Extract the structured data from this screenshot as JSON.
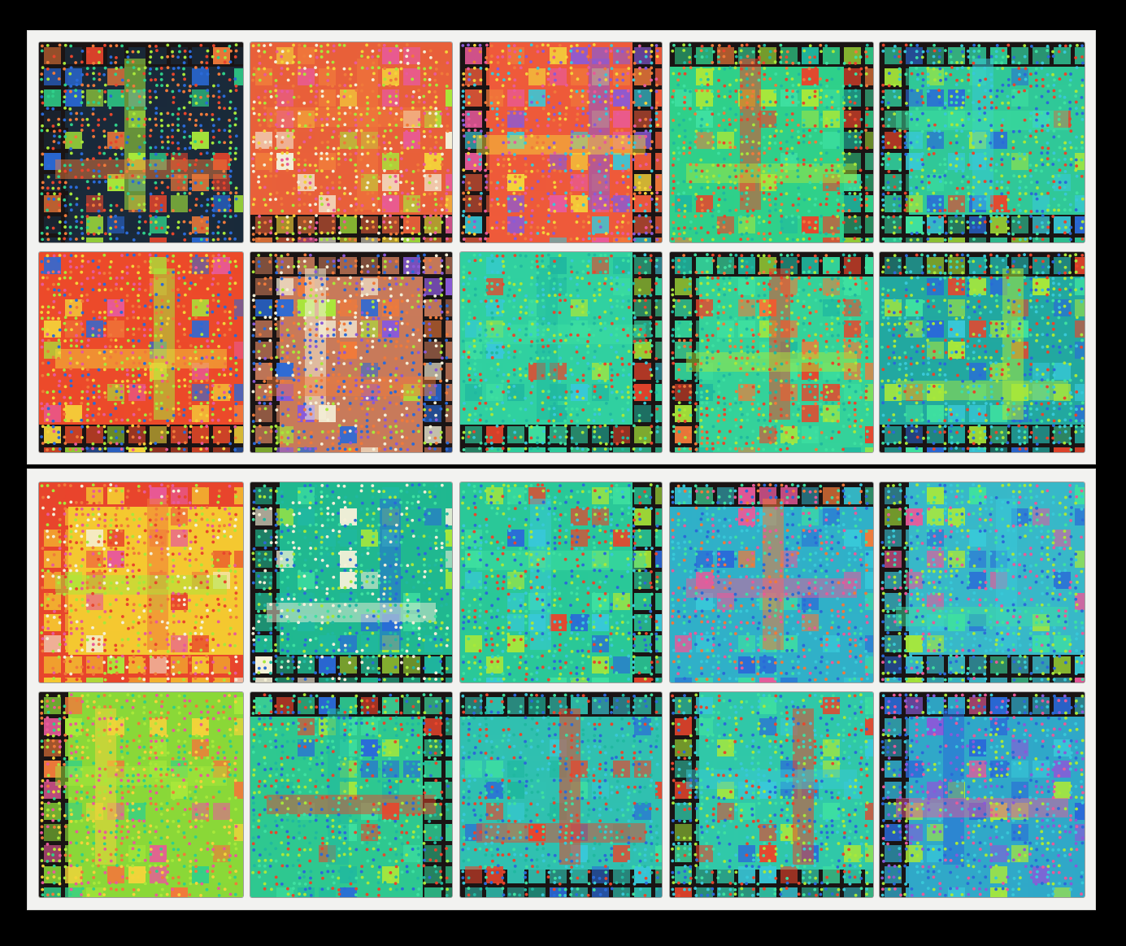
{
  "artwork": {
    "description_visible_text": "",
    "palette": {
      "red": "#e8452c",
      "orange": "#f07a3a",
      "coral": "#ee6a52",
      "green": "#2fd08a",
      "mint": "#3ee0a0",
      "teal": "#20b8a0",
      "lime": "#a8e83a",
      "yellow": "#f4d33a",
      "blue": "#2a6ad8",
      "cyan": "#38c8d8",
      "dark": "#1a1414",
      "pink": "#e85a9a",
      "violet": "#8a5ad8",
      "white": "#f4f0d8"
    },
    "panels": [
      {
        "name": "top-panel",
        "tiles": [
          {
            "base": "#1a2a3a",
            "accent": [
              "#e8452c",
              "#2fd08a",
              "#2a6ad8",
              "#f07a3a",
              "#a8e83a"
            ],
            "border": "#1a1414"
          },
          {
            "base": "#e8603a",
            "accent": [
              "#f07a3a",
              "#e85a9a",
              "#f4d33a",
              "#a8e83a",
              "#f4f0d8"
            ],
            "border": "#1a1414"
          },
          {
            "base": "#ee5a3a",
            "accent": [
              "#f07a3a",
              "#8a5ad8",
              "#f4d33a",
              "#e85a9a",
              "#38c8d8"
            ],
            "border": "#1a1414"
          },
          {
            "base": "#2fd08a",
            "accent": [
              "#3ee0a0",
              "#20b8a0",
              "#e8452c",
              "#a8e83a",
              "#f07a3a"
            ],
            "border": "#1a1414"
          },
          {
            "base": "#30c898",
            "accent": [
              "#3ee0a0",
              "#a8e83a",
              "#2a6ad8",
              "#38c8d8",
              "#e8452c"
            ],
            "border": "#1a1414"
          },
          {
            "base": "#ec4a2a",
            "accent": [
              "#f07a3a",
              "#f4d33a",
              "#e85a9a",
              "#2a6ad8",
              "#a8e83a"
            ],
            "border": "#1a1414"
          },
          {
            "base": "#c87a5a",
            "accent": [
              "#f4f0d8",
              "#a8e83a",
              "#8a5ad8",
              "#f07a3a",
              "#2a6ad8"
            ],
            "border": "#1a1414"
          },
          {
            "base": "#30d0a0",
            "accent": [
              "#3ee0a0",
              "#20b8a0",
              "#e8452c",
              "#38c8d8",
              "#a8e83a"
            ],
            "border": "#1a1414"
          },
          {
            "base": "#34d29a",
            "accent": [
              "#3ee0a0",
              "#a8e83a",
              "#e8452c",
              "#20b8a0",
              "#f07a3a"
            ],
            "border": "#1a1414"
          },
          {
            "base": "#22a8a0",
            "accent": [
              "#38c8d8",
              "#3ee0a0",
              "#e8452c",
              "#a8e83a",
              "#2a6ad8"
            ],
            "border": "#1a1414"
          }
        ]
      },
      {
        "name": "bottom-panel",
        "tiles": [
          {
            "base": "#f4c830",
            "accent": [
              "#e8452c",
              "#f07a3a",
              "#a8e83a",
              "#f4f0d8",
              "#e85a9a"
            ],
            "border": "#e8452c"
          },
          {
            "base": "#20b890",
            "accent": [
              "#3ee0a0",
              "#a8e83a",
              "#2a6ad8",
              "#f4f0d8",
              "#20b8a0"
            ],
            "border": "#1a1414"
          },
          {
            "base": "#2ac898",
            "accent": [
              "#3ee0a0",
              "#e8452c",
              "#2a6ad8",
              "#38c8d8",
              "#a8e83a"
            ],
            "border": "#1a1414"
          },
          {
            "base": "#30b0c8",
            "accent": [
              "#38c8d8",
              "#3ee0a0",
              "#e85a9a",
              "#2a6ad8",
              "#f07a3a"
            ],
            "border": "#1a1414"
          },
          {
            "base": "#38b8c8",
            "accent": [
              "#38c8d8",
              "#2a6ad8",
              "#e85a9a",
              "#3ee0a0",
              "#a8e83a"
            ],
            "border": "#1a1414"
          },
          {
            "base": "#8ad838",
            "accent": [
              "#a8e83a",
              "#f4d33a",
              "#2fd08a",
              "#e85a9a",
              "#f07a3a"
            ],
            "border": "#1a1414"
          },
          {
            "base": "#2ec890",
            "accent": [
              "#3ee0a0",
              "#e8452c",
              "#20b8a0",
              "#a8e83a",
              "#2a6ad8"
            ],
            "border": "#1a1414"
          },
          {
            "base": "#30c0b0",
            "accent": [
              "#38c8d8",
              "#3ee0a0",
              "#2a6ad8",
              "#e8452c",
              "#20b8a0"
            ],
            "border": "#1a1414"
          },
          {
            "base": "#30c8a8",
            "accent": [
              "#38c8d8",
              "#3ee0a0",
              "#2a6ad8",
              "#a8e83a",
              "#e8452c"
            ],
            "border": "#1a1414"
          },
          {
            "base": "#30a8c8",
            "accent": [
              "#2a6ad8",
              "#e85a9a",
              "#8a5ad8",
              "#38c8d8",
              "#a8e83a"
            ],
            "border": "#1a1414"
          }
        ]
      }
    ]
  }
}
